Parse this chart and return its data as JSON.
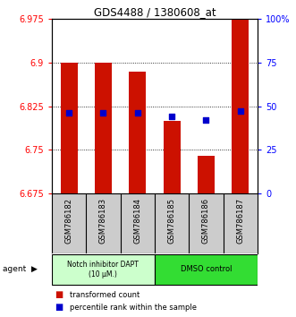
{
  "title": "GDS4488 / 1380608_at",
  "samples": [
    "GSM786182",
    "GSM786183",
    "GSM786184",
    "GSM786185",
    "GSM786186",
    "GSM786187"
  ],
  "red_values": [
    6.9,
    6.9,
    6.885,
    6.8,
    6.74,
    6.975
  ],
  "blue_values_pct": [
    46,
    46,
    46,
    44,
    42,
    47
  ],
  "ymin": 6.675,
  "ymax": 6.975,
  "yticks": [
    6.675,
    6.75,
    6.825,
    6.9,
    6.975
  ],
  "ytick_labels": [
    "6.675",
    "6.75",
    "6.825",
    "6.9",
    "6.975"
  ],
  "y2ticks": [
    0,
    25,
    50,
    75,
    100
  ],
  "y2tick_labels": [
    "0",
    "25",
    "50",
    "75",
    "100%"
  ],
  "bar_color": "#cc1100",
  "dot_color": "#0000cc",
  "bar_width": 0.5,
  "group1_label": "Notch inhibitor DAPT\n(10 μM.)",
  "group2_label": "DMSO control",
  "group1_color": "#ccffcc",
  "group2_color": "#33dd33",
  "group1_samples": [
    0,
    1,
    2
  ],
  "group2_samples": [
    3,
    4,
    5
  ],
  "legend_red": "transformed count",
  "legend_blue": "percentile rank within the sample",
  "agent_label": "agent",
  "background_color": "#ffffff",
  "plot_bg": "#ffffff",
  "label_area_bg": "#cccccc"
}
